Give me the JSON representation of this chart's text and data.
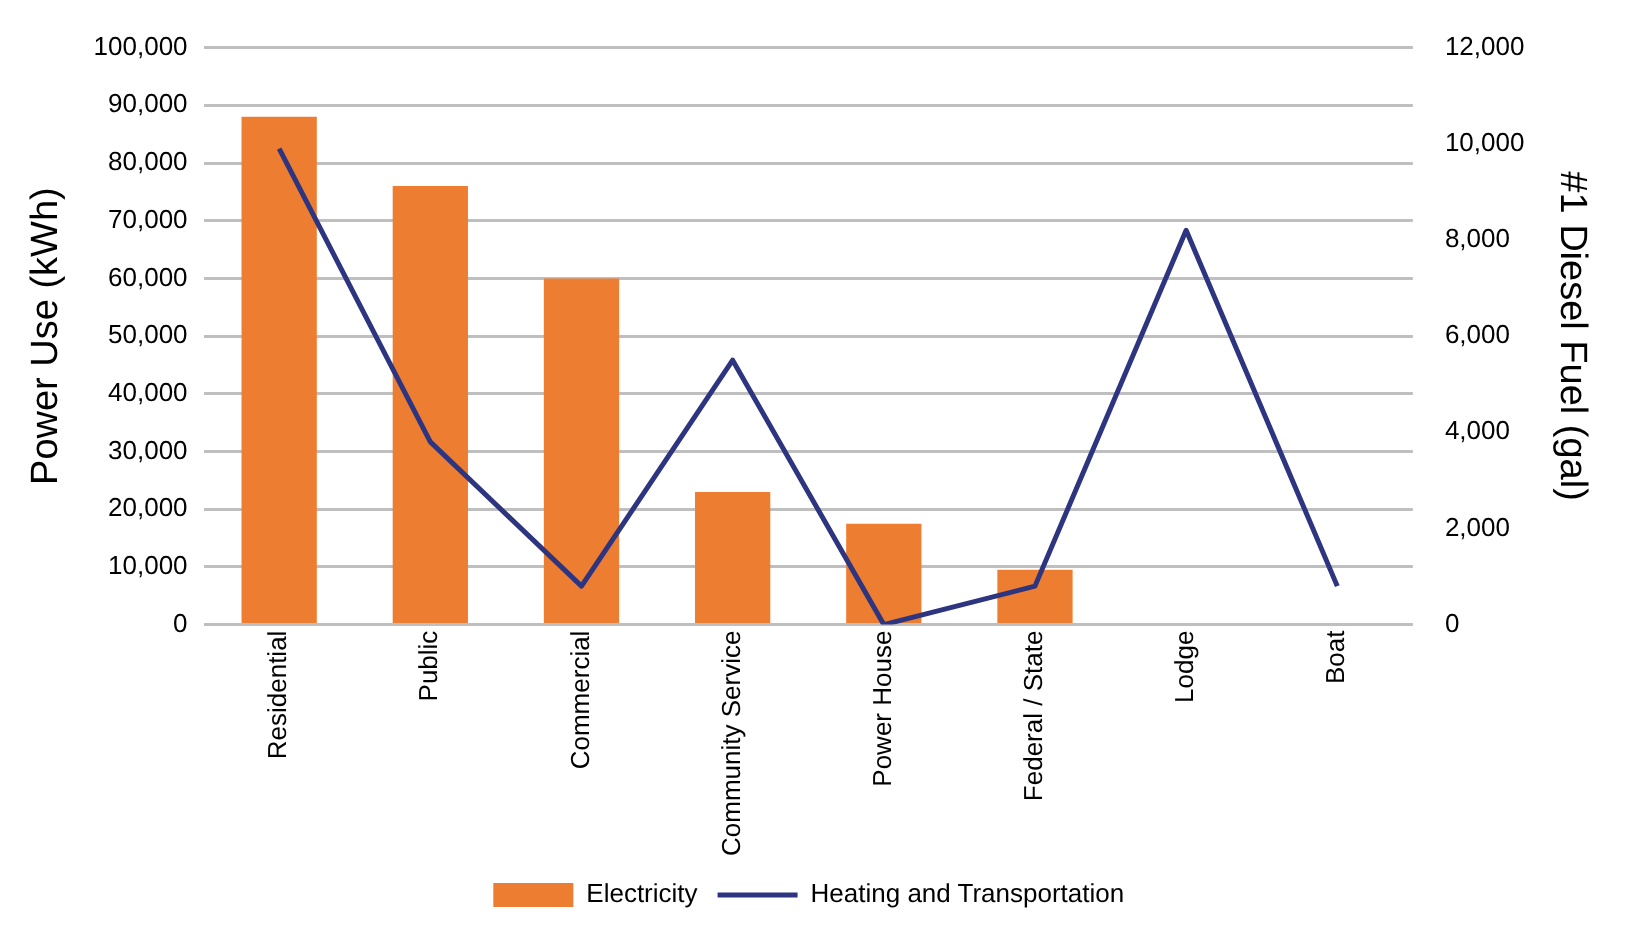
{
  "chart_data": {
    "type": "bar",
    "ylabel": "Power Use (kWh)",
    "y2label": "#1 Diesel Fuel (gal)",
    "categories": [
      "Residential",
      "Public",
      "Commercial",
      "Community Service",
      "Power House",
      "Federal / State",
      "Lodge",
      "Boat"
    ],
    "series": [
      {
        "name": "Electricity",
        "color": "#ed7d31",
        "values": [
          88000,
          76000,
          60000,
          23000,
          17500,
          9500,
          null,
          null
        ]
      },
      {
        "name": "Heating and Transportation",
        "type": "line",
        "axis": "y2",
        "color": "#2e3580",
        "values": [
          9900,
          3800,
          800,
          5500,
          0,
          800,
          8200,
          800
        ]
      }
    ],
    "ylim": [
      0,
      100000
    ],
    "yticks": [
      0,
      {
        "value": 10000,
        "label": "10,000"
      },
      {
        "value": 20000,
        "label": "20,000"
      },
      {
        "value": 30000,
        "label": "30,000"
      },
      {
        "value": 40000,
        "label": "40,000"
      },
      {
        "value": 50000,
        "label": "50,000"
      },
      {
        "value": 60000,
        "label": "60,000"
      },
      {
        "value": 70000,
        "label": "70,000"
      },
      {
        "value": 80000,
        "label": "80,000"
      },
      {
        "value": 90000,
        "label": "90,000"
      },
      {
        "value": 100000,
        "label": "100,000"
      }
    ],
    "y2lim": [
      0,
      12000
    ],
    "y2ticks": [
      0,
      {
        "value": 2000,
        "label": "2,000"
      },
      {
        "value": 4000,
        "label": "4,000"
      },
      {
        "value": 6000,
        "label": "6,000"
      },
      {
        "value": 8000,
        "label": "8,000"
      },
      {
        "value": 10000,
        "label": "10,000"
      },
      {
        "value": 12000,
        "label": "12,000"
      }
    ],
    "grid": "y",
    "legend": "bottom",
    "marker": "none"
  }
}
